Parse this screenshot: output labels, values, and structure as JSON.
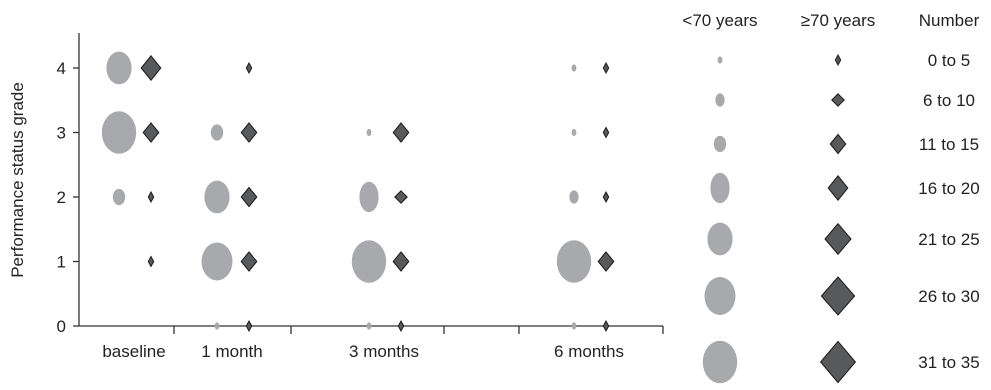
{
  "chart_data": {
    "type": "scatter",
    "title": "",
    "xlabel": "",
    "ylabel": "Performance status grade",
    "ylim": [
      0,
      4
    ],
    "yticks": [
      0,
      1,
      2,
      3,
      4
    ],
    "categories": [
      "baseline",
      "1 month",
      "3 months",
      "6 months"
    ],
    "grid": false,
    "legend_position": "right",
    "series": [
      {
        "name": "<70 years",
        "marker": "circle",
        "color": "#a7a9ac",
        "points": [
          {
            "time": "baseline",
            "grade": 4,
            "count_range": "21 to 25"
          },
          {
            "time": "baseline",
            "grade": 3,
            "count_range": "31 to 35"
          },
          {
            "time": "baseline",
            "grade": 2,
            "count_range": "11 to 15"
          },
          {
            "time": "1 month",
            "grade": 3,
            "count_range": "11 to 15"
          },
          {
            "time": "1 month",
            "grade": 2,
            "count_range": "21 to 25"
          },
          {
            "time": "1 month",
            "grade": 1,
            "count_range": "26 to 30"
          },
          {
            "time": "1 month",
            "grade": 0,
            "count_range": "0 to 5"
          },
          {
            "time": "3 months",
            "grade": 3,
            "count_range": "0 to 5"
          },
          {
            "time": "3 months",
            "grade": 2,
            "count_range": "16 to 20"
          },
          {
            "time": "3 months",
            "grade": 1,
            "count_range": "31 to 35"
          },
          {
            "time": "3 months",
            "grade": 0,
            "count_range": "0 to 5"
          },
          {
            "time": "6 months",
            "grade": 4,
            "count_range": "0 to 5"
          },
          {
            "time": "6 months",
            "grade": 3,
            "count_range": "0 to 5"
          },
          {
            "time": "6 months",
            "grade": 2,
            "count_range": "6 to 10"
          },
          {
            "time": "6 months",
            "grade": 1,
            "count_range": "31 to 35"
          },
          {
            "time": "6 months",
            "grade": 0,
            "count_range": "0 to 5"
          }
        ]
      },
      {
        "name": "≥70 years",
        "marker": "diamond",
        "color": "#58595b",
        "points": [
          {
            "time": "baseline",
            "grade": 4,
            "count_range": "16 to 20"
          },
          {
            "time": "baseline",
            "grade": 3,
            "count_range": "11 to 15"
          },
          {
            "time": "baseline",
            "grade": 2,
            "count_range": "0 to 5"
          },
          {
            "time": "baseline",
            "grade": 1,
            "count_range": "0 to 5"
          },
          {
            "time": "1 month",
            "grade": 4,
            "count_range": "0 to 5"
          },
          {
            "time": "1 month",
            "grade": 3,
            "count_range": "11 to 15"
          },
          {
            "time": "1 month",
            "grade": 2,
            "count_range": "11 to 15"
          },
          {
            "time": "1 month",
            "grade": 1,
            "count_range": "11 to 15"
          },
          {
            "time": "1 month",
            "grade": 0,
            "count_range": "0 to 5"
          },
          {
            "time": "3 months",
            "grade": 3,
            "count_range": "11 to 15"
          },
          {
            "time": "3 months",
            "grade": 2,
            "count_range": "6 to 10"
          },
          {
            "time": "3 months",
            "grade": 1,
            "count_range": "11 to 15"
          },
          {
            "time": "3 months",
            "grade": 0,
            "count_range": "0 to 5"
          },
          {
            "time": "6 months",
            "grade": 4,
            "count_range": "0 to 5"
          },
          {
            "time": "6 months",
            "grade": 3,
            "count_range": "0 to 5"
          },
          {
            "time": "6 months",
            "grade": 2,
            "count_range": "0 to 5"
          },
          {
            "time": "6 months",
            "grade": 1,
            "count_range": "11 to 15"
          },
          {
            "time": "6 months",
            "grade": 0,
            "count_range": "0 to 5"
          }
        ]
      }
    ],
    "legend": {
      "headers": [
        "<70 years",
        "≥70 years",
        "Number"
      ],
      "size_bins": [
        "0 to 5",
        "6 to 10",
        "11 to 15",
        "16 to 20",
        "21 to 25",
        "26 to 30",
        "31 to 35"
      ]
    }
  }
}
